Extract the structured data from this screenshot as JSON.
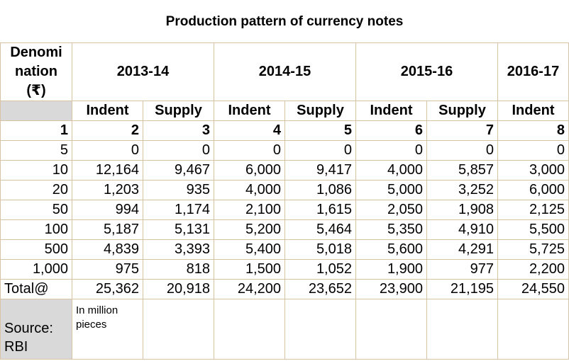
{
  "title": "Production pattern of currency notes",
  "header": {
    "denomination_line1": "Denomi",
    "denomination_line2": "nation",
    "denomination_line3": "(₹)",
    "years": [
      "2013-14",
      "2014-15",
      "2015-16",
      "2016-17"
    ],
    "subheaders": [
      "Indent",
      "Supply",
      "Indent",
      "Supply",
      "Indent",
      "Supply",
      "Indent"
    ],
    "col_numbers": [
      "1",
      "2",
      "3",
      "4",
      "5",
      "6",
      "7",
      "8"
    ]
  },
  "rows": [
    {
      "denom": "5",
      "values": [
        "0",
        "0",
        "0",
        "0",
        "0",
        "0",
        "0"
      ]
    },
    {
      "denom": "10",
      "values": [
        "12,164",
        "9,467",
        "6,000",
        "9,417",
        "4,000",
        "5,857",
        "3,000"
      ]
    },
    {
      "denom": "20",
      "values": [
        "1,203",
        "935",
        "4,000",
        "1,086",
        "5,000",
        "3,252",
        "6,000"
      ]
    },
    {
      "denom": "50",
      "values": [
        "994",
        "1,174",
        "2,100",
        "1,615",
        "2,050",
        "1,908",
        "2,125"
      ]
    },
    {
      "denom": "100",
      "values": [
        "5,187",
        "5,131",
        "5,200",
        "5,464",
        "5,350",
        "4,910",
        "5,500"
      ]
    },
    {
      "denom": "500",
      "values": [
        "4,839",
        "3,393",
        "5,400",
        "5,018",
        "5,600",
        "4,291",
        "5,725"
      ]
    },
    {
      "denom": "1,000",
      "values": [
        "975",
        "818",
        "1,500",
        "1,052",
        "1,900",
        "977",
        "2,200"
      ]
    },
    {
      "denom": "Total@",
      "values": [
        "25,362",
        "20,918",
        "24,200",
        "23,652",
        "23,900",
        "21,195",
        "24,550"
      ]
    }
  ],
  "footer": {
    "source_line1": "Source:",
    "source_line2": "RBI",
    "note_line1": "In million",
    "note_line2": "pieces"
  }
}
